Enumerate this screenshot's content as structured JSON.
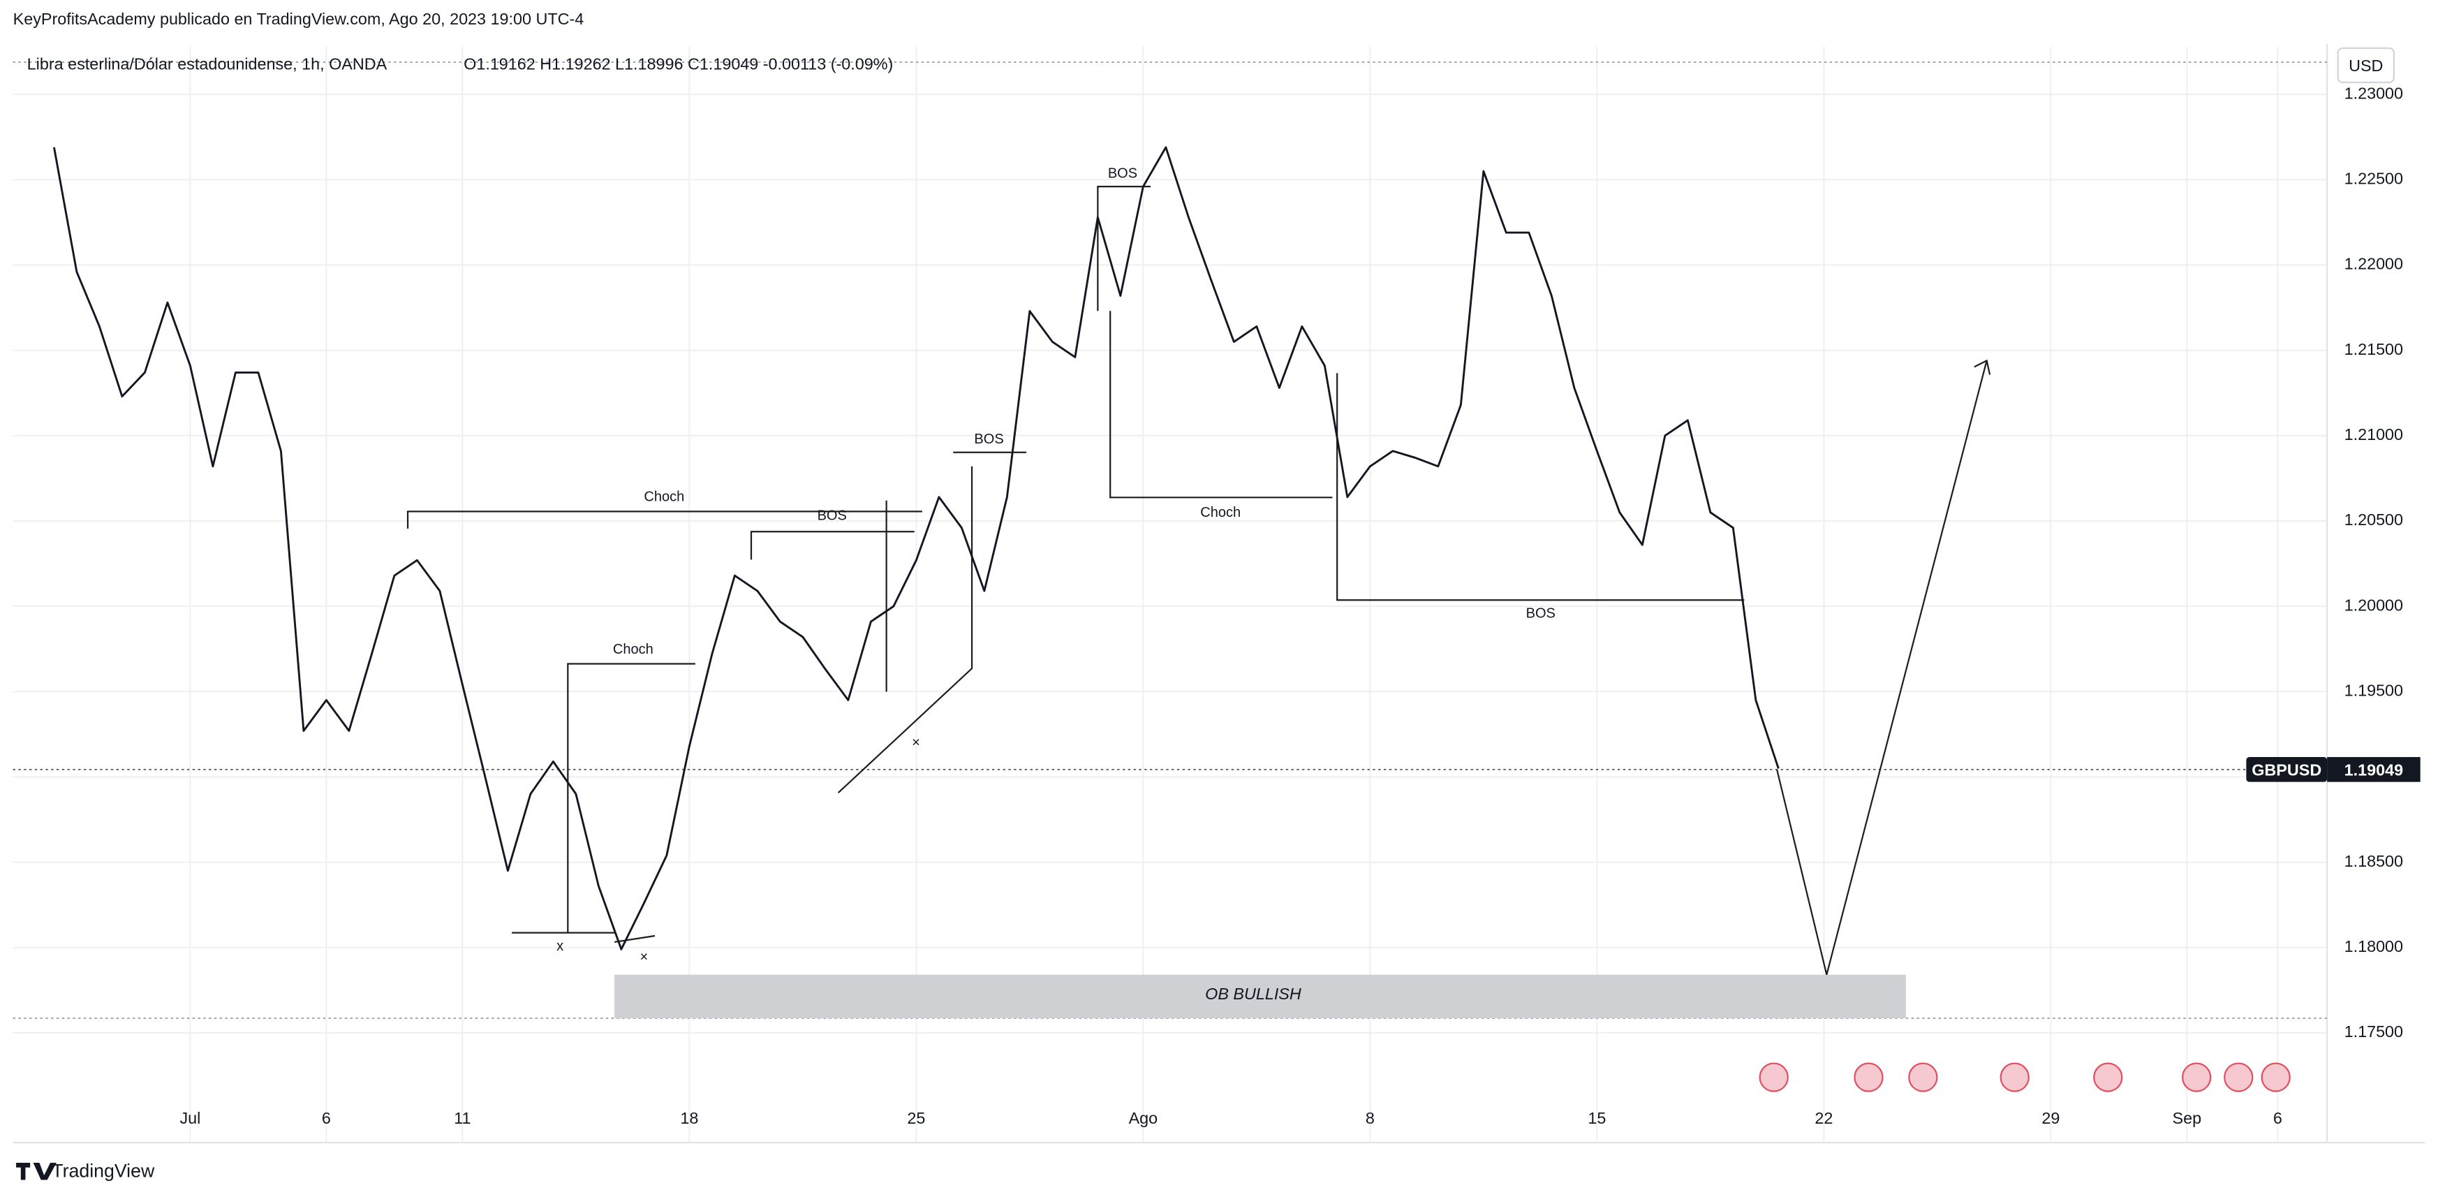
{
  "header": {
    "publisher": "KeyProfitsAcademy publicado en TradingView.com, Ago 20, 2023 19:00 UTC-4",
    "brand": "TradingView",
    "currency_button": "USD"
  },
  "chart_data": {
    "type": "line",
    "title": "Libra esterlina/Dólar estadounidense, 1h, OANDA",
    "ohlc": "O1.19162  H1.19262  L1.18996  C1.19049  -0.00113 (-0.09%)",
    "categories": [
      null,
      null,
      null,
      null,
      null,
      null,
      "Jul",
      null,
      null,
      null,
      null,
      null,
      "6",
      null,
      null,
      null,
      null,
      null,
      "11",
      null,
      null,
      null,
      null,
      null,
      null,
      null,
      null,
      null,
      "18",
      null,
      null,
      null,
      null,
      null,
      null,
      null,
      null,
      null,
      "25",
      null,
      null,
      null,
      null,
      null,
      null,
      null,
      null,
      null,
      "Ago",
      null,
      null,
      null,
      null,
      null,
      null,
      null,
      null,
      null,
      "8",
      null,
      null,
      null,
      null,
      null,
      null,
      null,
      null,
      null,
      "15",
      null,
      null,
      null,
      null,
      null,
      null,
      null,
      null,
      null,
      "22",
      null,
      null,
      null,
      null,
      null,
      null,
      null,
      null,
      null,
      "29",
      null,
      null,
      null,
      null,
      null,
      "Sep",
      null,
      null,
      null,
      "6",
      null
    ],
    "series": [
      {
        "name": "GBPUSD",
        "color": "#131722",
        "values": [
          1.2269,
          1.2196,
          1.2164,
          1.2123,
          1.2137,
          1.2178,
          1.2141,
          1.2082,
          1.2137,
          1.2137,
          1.2091,
          1.1927,
          1.1945,
          1.1927,
          1.1972,
          1.2018,
          1.2027,
          1.2009,
          1.1954,
          1.19,
          1.1845,
          1.189,
          1.1909,
          1.189,
          1.1836,
          1.1799,
          1.1826,
          1.1854,
          1.1918,
          1.1972,
          1.2018,
          1.2009,
          1.1991,
          1.1982,
          1.1963,
          1.1945,
          1.1991,
          1.2,
          1.2027,
          1.2064,
          1.2046,
          1.2009,
          1.2064,
          1.2173,
          1.2155,
          1.2146,
          1.2228,
          1.2182,
          1.2246,
          1.2269,
          1.2228,
          1.2191,
          1.2155,
          1.2164,
          1.2128,
          1.2164,
          1.2141,
          1.2064,
          1.2082,
          1.2091,
          1.2087,
          1.2082,
          1.2118,
          1.2255,
          1.2219,
          1.2219,
          1.2182,
          1.2128,
          1.2091,
          1.2055,
          1.2036,
          1.21,
          1.2109,
          1.2055,
          1.2046,
          1.1945,
          1.19049,
          null,
          null,
          null,
          null,
          null,
          null,
          null,
          null,
          null,
          null,
          null,
          null,
          null,
          null,
          null,
          null,
          null,
          null,
          null,
          null,
          null,
          null,
          null
        ]
      }
    ],
    "ylim": [
      1.1713,
      1.2328
    ],
    "yticks": [
      {
        "value": 1.175,
        "label": "1.17500"
      },
      {
        "value": 1.18,
        "label": "1.18000"
      },
      {
        "value": 1.185,
        "label": "1.18500"
      },
      {
        "value": 1.19,
        "label": "1.19000"
      },
      {
        "value": 1.195,
        "label": "1.19500"
      },
      {
        "value": 1.2,
        "label": "1.20000"
      },
      {
        "value": 1.205,
        "label": "1.20500"
      },
      {
        "value": 1.21,
        "label": "1.21000"
      },
      {
        "value": 1.215,
        "label": "1.21500"
      },
      {
        "value": 1.22,
        "label": "1.22000"
      },
      {
        "value": 1.225,
        "label": "1.22500"
      },
      {
        "value": 1.23,
        "label": "1.23000"
      }
    ],
    "grid": true,
    "annotations": [
      "Choch",
      "BOS",
      "Choch",
      "x",
      "×",
      "×",
      "BOS",
      "BOS",
      "Choch",
      "BOS",
      "OB BULLISH"
    ]
  }
}
